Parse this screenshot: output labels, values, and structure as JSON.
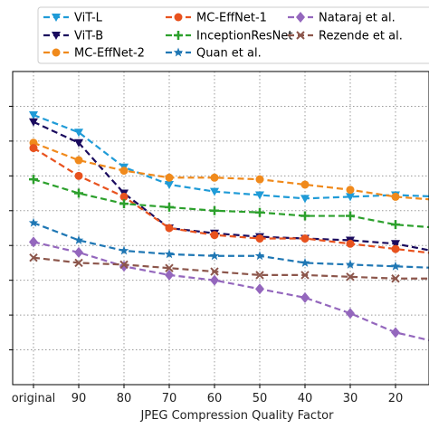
{
  "chart_data": {
    "type": "line",
    "xlabel": "JPEG Compression Quality Factor",
    "ylabel": "",
    "categories": [
      "original",
      "90",
      "80",
      "70",
      "60",
      "50",
      "40",
      "30",
      "20",
      "10"
    ],
    "ylim": [
      10,
      100
    ],
    "yticks": [
      20,
      30,
      40,
      50,
      60,
      70,
      80,
      90
    ],
    "grid": true,
    "legend_position": "top, outside, 3 columns",
    "series": [
      {
        "name": "ViT-L",
        "color": "#1f9bd7",
        "marker": "triangle-down",
        "values": [
          87.5,
          82.5,
          72.5,
          67.5,
          65.5,
          64.5,
          63.5,
          64.0,
          64.5,
          64.0
        ]
      },
      {
        "name": "ViT-B",
        "color": "#1a0b5e",
        "marker": "triangle-down",
        "values": [
          85.5,
          79.5,
          65.0,
          55.0,
          53.5,
          52.5,
          52.0,
          51.5,
          50.5,
          48.0
        ]
      },
      {
        "name": "MC-EffNet-2",
        "color": "#f08a1c",
        "marker": "circle",
        "values": [
          79.5,
          74.5,
          71.5,
          69.5,
          69.5,
          69.0,
          67.5,
          66.0,
          64.0,
          63.0
        ]
      },
      {
        "name": "MC-EffNet-1",
        "color": "#e8521e",
        "marker": "circle",
        "values": [
          78.0,
          70.0,
          64.0,
          55.0,
          53.0,
          52.0,
          52.0,
          50.5,
          49.0,
          47.5
        ]
      },
      {
        "name": "InceptionResNet",
        "color": "#2ca02c",
        "marker": "plus",
        "values": [
          69.0,
          65.0,
          62.0,
          61.0,
          60.0,
          59.5,
          58.5,
          58.5,
          56.0,
          55.0
        ]
      },
      {
        "name": "Quan et al.",
        "color": "#1f77b4",
        "marker": "star",
        "values": [
          56.5,
          51.5,
          48.5,
          47.5,
          47.0,
          47.0,
          45.0,
          44.5,
          44.0,
          43.5
        ]
      },
      {
        "name": "Nataraj et al.",
        "color": "#9467bd",
        "marker": "diamond",
        "values": [
          51.0,
          48.0,
          44.0,
          41.5,
          40.0,
          37.5,
          35.0,
          30.5,
          25.0,
          22.0
        ]
      },
      {
        "name": "Rezende et al.",
        "color": "#8c564b",
        "marker": "x",
        "values": [
          46.5,
          45.0,
          44.5,
          43.5,
          42.5,
          41.5,
          41.5,
          41.0,
          40.5,
          40.5
        ]
      }
    ]
  }
}
